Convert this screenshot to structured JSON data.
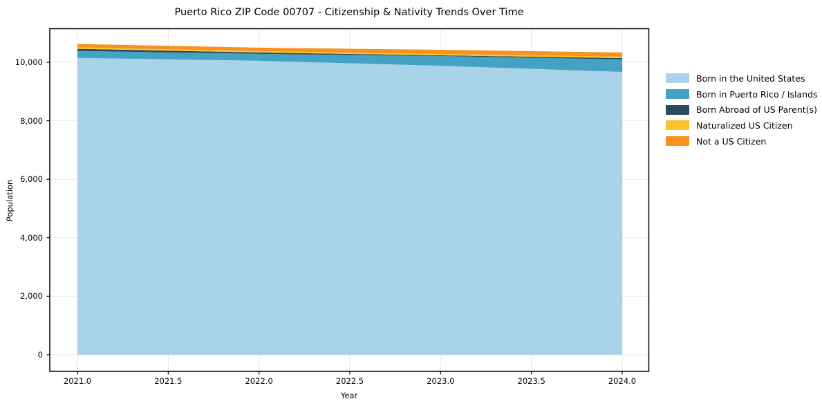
{
  "chart_data": {
    "type": "area",
    "stacked": true,
    "title": "Puerto Rico ZIP Code 00707 - Citizenship & Nativity Trends Over Time",
    "xlabel": "Year",
    "ylabel": "Population",
    "x": [
      2021,
      2022,
      2023,
      2024
    ],
    "series": [
      {
        "name": "Born in the United States",
        "color": "#a9d3e8",
        "values": [
          10150,
          10050,
          9880,
          9670
        ]
      },
      {
        "name": "Born in Puerto Rico / Islands",
        "color": "#44a3c4",
        "values": [
          237,
          236,
          332,
          426
        ]
      },
      {
        "name": "Born Abroad of US Parent(s)",
        "color": "#2b4a5e",
        "values": [
          71,
          47,
          24,
          47
        ]
      },
      {
        "name": "Naturalized US Citizen",
        "color": "#fbc22d",
        "values": [
          47,
          48,
          47,
          47
        ]
      },
      {
        "name": "Not a US Citizen",
        "color": "#f6921f",
        "values": [
          118,
          119,
          142,
          143
        ]
      }
    ],
    "xticks": {
      "values": [
        2021.0,
        2021.5,
        2022.0,
        2022.5,
        2023.0,
        2023.5,
        2024.0
      ],
      "labels": [
        "2021.0",
        "2021.5",
        "2022.0",
        "2022.5",
        "2023.0",
        "2023.5",
        "2024.0"
      ]
    },
    "yticks": {
      "values": [
        0,
        2000,
        4000,
        6000,
        8000,
        10000
      ],
      "labels": [
        "0",
        "2,000",
        "4,000",
        "6,000",
        "8,000",
        "10,000"
      ]
    },
    "xlim": [
      2020.85,
      2024.15
    ],
    "ylim": [
      -570,
      11140
    ],
    "grid": true,
    "grid_color": "#e9e9e9",
    "axis_color": "#000000",
    "legend_position": "right-outside"
  }
}
